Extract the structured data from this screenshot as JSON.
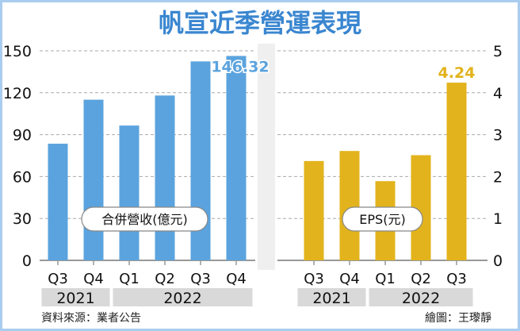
{
  "title": "帆宣近季營運表現",
  "colors": {
    "revenue": "#5ba3de",
    "eps": "#e2b31c",
    "title": "#3a86d0",
    "year_band": "#d9d9d9",
    "frame": "#a9cdee"
  },
  "chart_data": [
    {
      "type": "bar",
      "label": "合併營收(億元)",
      "categories": [
        "Q3",
        "Q4",
        "Q1",
        "Q2",
        "Q3",
        "Q4"
      ],
      "years": [
        {
          "label": "2021",
          "span": 2
        },
        {
          "label": "2022",
          "span": 4
        }
      ],
      "values": [
        83.5,
        115,
        96.5,
        118,
        142.4,
        146.32
      ],
      "data_labels": {
        "5": "146.32"
      },
      "ylim": [
        0,
        150
      ],
      "yticks": [
        "0",
        "30",
        "60",
        "90",
        "120",
        "150"
      ],
      "grid": true,
      "axis_side": "left"
    },
    {
      "type": "bar",
      "label": "EPS(元)",
      "categories": [
        "Q3",
        "Q4",
        "Q1",
        "Q2",
        "Q3"
      ],
      "years": [
        {
          "label": "2021",
          "span": 2
        },
        {
          "label": "2022",
          "span": 3
        }
      ],
      "values": [
        2.37,
        2.61,
        1.89,
        2.51,
        4.24
      ],
      "data_labels": {
        "4": "4.24"
      },
      "ylim": [
        0,
        5
      ],
      "yticks": [
        "0",
        "1",
        "2",
        "3",
        "4",
        "5"
      ],
      "grid": true,
      "axis_side": "right"
    }
  ],
  "footer": {
    "source": "資料來源：業者公告",
    "credit": "繪圖：王瓈靜"
  }
}
